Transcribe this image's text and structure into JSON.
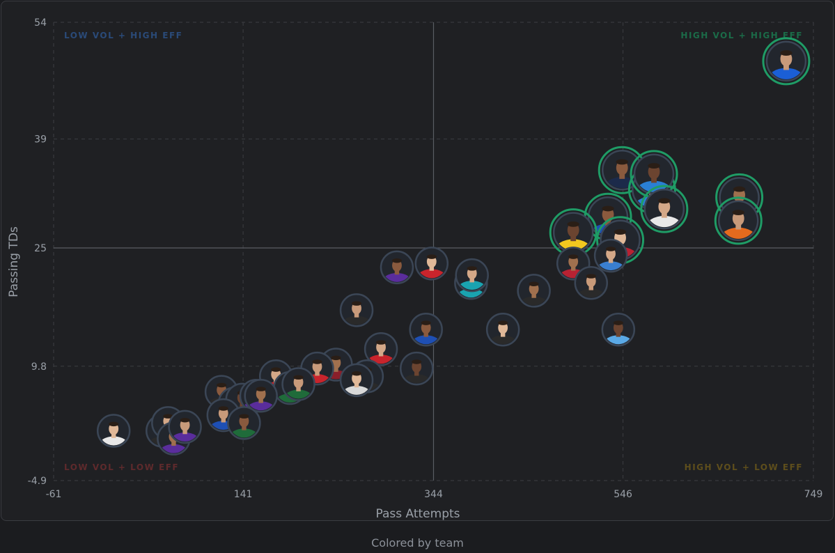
{
  "caption": "Colored by team",
  "colors": {
    "highlight": "#1f9c66",
    "avatar_ring": "#3b4656",
    "quadrant_tl": "#2a4a78",
    "quadrant_tr": "#1b6b48",
    "quadrant_bl": "#5e2a2c",
    "quadrant_br": "#5e4e1c"
  },
  "chart_data": {
    "type": "scatter",
    "title": "",
    "xlabel": "Pass Attempts",
    "ylabel": "Passing TDs",
    "xlim": [
      -61,
      749
    ],
    "ylim": [
      -4.9,
      54
    ],
    "xticks": [
      "-61",
      "141",
      "344",
      "546",
      "749"
    ],
    "yticks": [
      "54",
      "39",
      "25",
      "9.8",
      "-4.9"
    ],
    "x_mid": 344,
    "y_mid": 25,
    "grid": true,
    "quadrant_labels": {
      "top_left": "LOW VOL + HIGH EFF",
      "top_right": "HIGH VOL + HIGH EFF",
      "bottom_left": "LOW VOL + LOW EFF",
      "bottom_right": "HIGH VOL + LOW EFF"
    },
    "points": [
      {
        "x": 720,
        "y": 49,
        "jersey": "#1b5fd6",
        "highlight": true
      },
      {
        "x": 545,
        "y": 35,
        "jersey": "#1c2a4a",
        "highlight": true
      },
      {
        "x": 577,
        "y": 32.5,
        "jersey": "#2a7fd4",
        "highlight": true
      },
      {
        "x": 579,
        "y": 34.5,
        "jersey": "#2a7fd4",
        "highlight": true
      },
      {
        "x": 590,
        "y": 30,
        "jersey": "#e8e8e8",
        "highlight": true
      },
      {
        "x": 670,
        "y": 31.5,
        "jersey": "#1a2a4a",
        "highlight": true
      },
      {
        "x": 669,
        "y": 28.5,
        "jersey": "#e56a1e",
        "highlight": true
      },
      {
        "x": 530,
        "y": 29,
        "jersey": "#1e4fb4",
        "highlight": true
      },
      {
        "x": 543,
        "y": 26,
        "jersey": "#b82233",
        "highlight": true
      },
      {
        "x": 493,
        "y": 27,
        "jersey": "#f2c81f",
        "highlight": true
      },
      {
        "x": 533,
        "y": 24,
        "jersey": "#3a7fd0",
        "highlight": false
      },
      {
        "x": 493,
        "y": 23,
        "jersey": "#b82233",
        "highlight": false
      },
      {
        "x": 512,
        "y": 20.5,
        "jersey": "#2a2a2a",
        "highlight": false
      },
      {
        "x": 305,
        "y": 22.5,
        "jersey": "#5a2d9c",
        "highlight": false
      },
      {
        "x": 342,
        "y": 23,
        "jersey": "#c8242c",
        "highlight": false
      },
      {
        "x": 384,
        "y": 20.5,
        "jersey": "#1aa3b0",
        "highlight": false
      },
      {
        "x": 385,
        "y": 21.5,
        "jersey": "#1aa3b0",
        "highlight": false
      },
      {
        "x": 451,
        "y": 19.5,
        "jersey": "#2a2a2a",
        "highlight": false
      },
      {
        "x": 262,
        "y": 17,
        "jersey": "#2a2a2a",
        "highlight": false
      },
      {
        "x": 336,
        "y": 14.5,
        "jersey": "#1e4fb4",
        "highlight": false
      },
      {
        "x": 418,
        "y": 14.5,
        "jersey": "#2a2a2a",
        "highlight": false
      },
      {
        "x": 541,
        "y": 14.5,
        "jersey": "#5aa9e6",
        "highlight": false
      },
      {
        "x": 288,
        "y": 12,
        "jersey": "#c8242c",
        "highlight": false
      },
      {
        "x": 240,
        "y": 10,
        "jersey": "#8a1f2a",
        "highlight": false
      },
      {
        "x": 220,
        "y": 9.5,
        "jersey": "#c8242c",
        "highlight": false
      },
      {
        "x": 273,
        "y": 8.5,
        "jersey": "#2a2a2a",
        "highlight": false
      },
      {
        "x": 262,
        "y": 8,
        "jersey": "#d9d9d9",
        "highlight": false
      },
      {
        "x": 326,
        "y": 9.5,
        "jersey": "#2a2a2a",
        "highlight": false
      },
      {
        "x": 176,
        "y": 8.5,
        "jersey": "#c8242c",
        "highlight": false
      },
      {
        "x": 191,
        "y": 7,
        "jersey": "#1f6b3a",
        "highlight": false
      },
      {
        "x": 200,
        "y": 7.5,
        "jersey": "#1f6b3a",
        "highlight": false
      },
      {
        "x": 118,
        "y": 6.5,
        "jersey": "#2a2a2a",
        "highlight": false
      },
      {
        "x": 132,
        "y": 5,
        "jersey": "#2a2a2a",
        "highlight": false
      },
      {
        "x": 140,
        "y": 5.5,
        "jersey": "#2a2a2a",
        "highlight": false
      },
      {
        "x": 155,
        "y": 6,
        "jersey": "#5a2d9c",
        "highlight": false
      },
      {
        "x": 160,
        "y": 6,
        "jersey": "#5a2d9c",
        "highlight": false
      },
      {
        "x": 120,
        "y": 3.5,
        "jersey": "#1e4fb4",
        "highlight": false
      },
      {
        "x": 142,
        "y": 2.5,
        "jersey": "#1f6b3a",
        "highlight": false
      },
      {
        "x": 3,
        "y": 1.5,
        "jersey": "#e8e8e8",
        "highlight": false
      },
      {
        "x": 55,
        "y": 1.5,
        "jersey": "#2a2a2a",
        "highlight": false
      },
      {
        "x": 61,
        "y": 2.5,
        "jersey": "#2a2a2a",
        "highlight": false
      },
      {
        "x": 67,
        "y": 0.5,
        "jersey": "#5a2d9c",
        "highlight": false
      },
      {
        "x": 79,
        "y": 2,
        "jersey": "#5a2d9c",
        "highlight": false
      }
    ]
  }
}
